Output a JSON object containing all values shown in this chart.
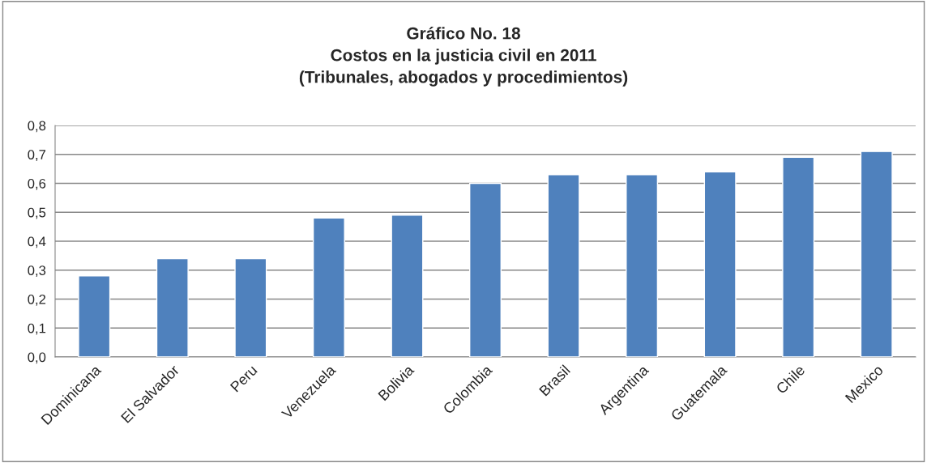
{
  "chart_data": {
    "type": "bar",
    "title": "Gráfico No. 18\nCostos en la justicia civil en 2011\n(Tribunales, abogados y procedimientos)",
    "categories": [
      "Dominicana",
      "El Salvador",
      "Peru",
      "Venezuela",
      "Bolivia",
      "Colombia",
      "Brasil",
      "Argentina",
      "Guatemala",
      "Chile",
      "Mexico"
    ],
    "values": [
      0.28,
      0.34,
      0.34,
      0.48,
      0.49,
      0.6,
      0.63,
      0.63,
      0.64,
      0.69,
      0.71
    ],
    "color": "#4f81bd",
    "ylim": [
      0,
      0.8
    ],
    "yticks": [
      {
        "value": 0,
        "label": "0,0"
      },
      {
        "value": 0.1,
        "label": "0,1"
      },
      {
        "value": 0.2,
        "label": "0,2"
      },
      {
        "value": 0.3,
        "label": "0,3"
      },
      {
        "value": 0.4,
        "label": "0,4"
      },
      {
        "value": 0.5,
        "label": "0,5"
      },
      {
        "value": 0.6,
        "label": "0,6"
      },
      {
        "value": 0.7,
        "label": "0,7"
      },
      {
        "value": 0.8,
        "label": "0,8"
      }
    ],
    "grid": "y"
  }
}
